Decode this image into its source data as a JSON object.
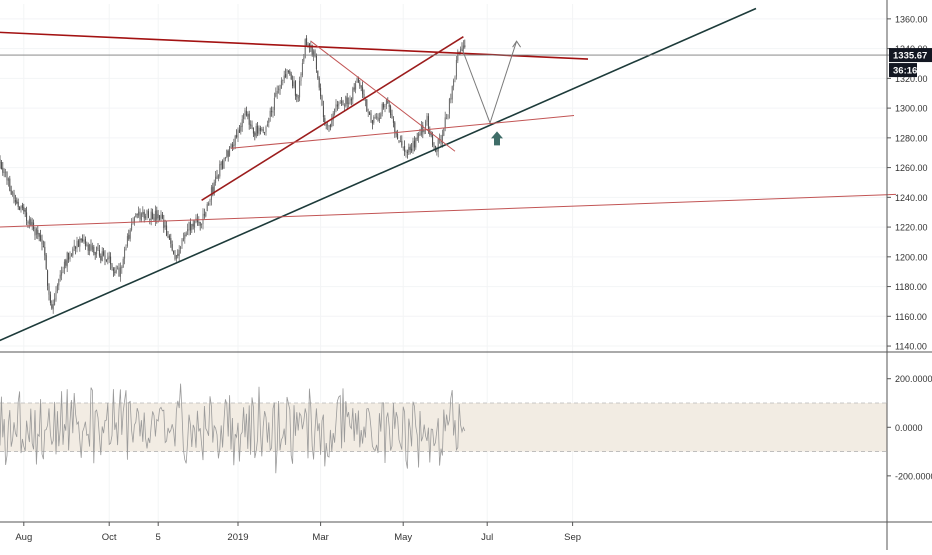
{
  "chart_data": {
    "type": "candlestick",
    "price_axis": {
      "ylim": [
        1136,
        1370
      ],
      "ticks": [
        "1140.00",
        "1160.00",
        "1180.00",
        "1200.00",
        "1220.00",
        "1240.00",
        "1260.00",
        "1280.00",
        "1300.00",
        "1320.00",
        "1340.00",
        "1360.00"
      ],
      "tick_values": [
        1140,
        1160,
        1180,
        1200,
        1220,
        1240,
        1260,
        1280,
        1300,
        1320,
        1340,
        1360
      ],
      "last_price_label": "1335.67",
      "countdown_label": "36:16",
      "last_price": 1335.67
    },
    "oscillator_axis": {
      "ylim": [
        -390,
        310
      ],
      "ticks": [
        "200.0000",
        "0.0000",
        "-200.0000"
      ],
      "tick_values": [
        200,
        0,
        -200
      ],
      "band": [
        -100,
        100
      ]
    },
    "time_axis": {
      "labels": [
        "Aug",
        "Oct",
        "5",
        "2019",
        "Mar",
        "May",
        "Jul",
        "Sep"
      ],
      "label_day_index": [
        17,
        78,
        113,
        170,
        229,
        288,
        348,
        409
      ]
    },
    "price_path": {
      "knots": [
        [
          0,
          1265
        ],
        [
          10,
          1240
        ],
        [
          20,
          1225
        ],
        [
          30,
          1210
        ],
        [
          37,
          1165
        ],
        [
          45,
          1195
        ],
        [
          55,
          1210
        ],
        [
          65,
          1205
        ],
        [
          75,
          1200
        ],
        [
          85,
          1190
        ],
        [
          95,
          1225
        ],
        [
          105,
          1230
        ],
        [
          115,
          1225
        ],
        [
          125,
          1200
        ],
        [
          135,
          1220
        ],
        [
          145,
          1225
        ],
        [
          155,
          1255
        ],
        [
          165,
          1275
        ],
        [
          175,
          1295
        ],
        [
          182,
          1285
        ],
        [
          188,
          1282
        ],
        [
          196,
          1305
        ],
        [
          205,
          1325
        ],
        [
          213,
          1308
        ],
        [
          218,
          1345
        ],
        [
          225,
          1335
        ],
        [
          233,
          1285
        ],
        [
          241,
          1302
        ],
        [
          250,
          1305
        ],
        [
          256,
          1320
        ],
        [
          262,
          1300
        ],
        [
          268,
          1290
        ],
        [
          275,
          1305
        ],
        [
          281,
          1290
        ],
        [
          289,
          1270
        ],
        [
          296,
          1275
        ],
        [
          305,
          1292
        ],
        [
          311,
          1272
        ],
        [
          316,
          1282
        ],
        [
          320,
          1298
        ],
        [
          328,
          1340
        ],
        [
          332,
          1338
        ]
      ],
      "seed": 7,
      "noise": 4
    },
    "oscillator_series": {
      "seed": 3,
      "amplitude": 130,
      "last_index": 332
    },
    "colors": {
      "up": "#6b6b6b",
      "down": "#4a4a4a",
      "resistance": "#a31212",
      "trend": "#9c1d1d",
      "support": "#1d3b3a",
      "thin_red": "#c25555",
      "projection": "#7a7a7a",
      "arrow": "#3f6d68",
      "band": "#f2ece3",
      "axis_text": "#333333",
      "badge_dark": "#131722",
      "badge_price": "#131722"
    },
    "drawings": [
      {
        "name": "resistance-line",
        "color_key": "resistance",
        "from": [
          -2,
          1351
        ],
        "to": [
          420,
          1333
        ],
        "width": 1.6
      },
      {
        "name": "rising-trend-line",
        "color_key": "trend",
        "from": [
          144,
          1238
        ],
        "to": [
          331,
          1348
        ],
        "width": 1.6
      },
      {
        "name": "support-trend-line",
        "color_key": "support",
        "from": [
          -2,
          1143
        ],
        "to": [
          540,
          1367
        ],
        "width": 1.6
      },
      {
        "name": "upper-middle-line",
        "color_key": "thin_red",
        "from": [
          165,
          1273
        ],
        "to": [
          410,
          1295
        ],
        "width": 1
      },
      {
        "name": "lower-long-line",
        "color_key": "thin_red",
        "from": [
          -2,
          1220
        ],
        "to": [
          640,
          1242
        ],
        "width": 1
      },
      {
        "name": "falling-channel-line",
        "color_key": "thin_red",
        "from": [
          222,
          1345
        ],
        "to": [
          325,
          1271
        ],
        "width": 1
      },
      {
        "name": "last-price-line",
        "color_key": "projection",
        "from": [
          -2,
          1335.67
        ],
        "to": [
          635,
          1335.67
        ],
        "width": 0.8
      },
      {
        "name": "projection-down",
        "color_key": "projection",
        "from": [
          330,
          1340
        ],
        "to": [
          350,
          1290
        ],
        "width": 1
      },
      {
        "name": "projection-up",
        "color_key": "projection",
        "from": [
          350,
          1290
        ],
        "to": [
          369,
          1345
        ],
        "width": 1
      }
    ],
    "up_arrow_at": [
      355,
      1279
    ]
  }
}
